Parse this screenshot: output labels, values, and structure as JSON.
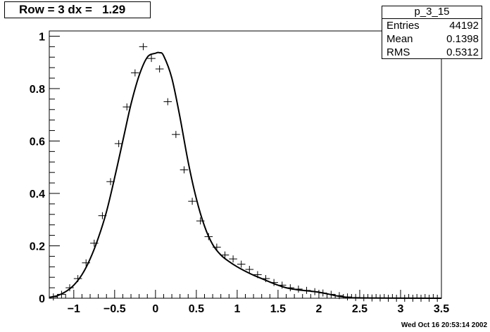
{
  "title": "Row = 3 dx =   1.29",
  "stats": {
    "name": "p_3_15",
    "rows": [
      {
        "key": "Entries",
        "value": "44192"
      },
      {
        "key": "Mean",
        "value": "0.1398"
      },
      {
        "key": "RMS",
        "value": "0.5312"
      }
    ]
  },
  "footer": "Wed Oct 16 20:53:14 2002",
  "chart_data": {
    "type": "scatter",
    "xlim": [
      -1.3,
      3.5
    ],
    "ylim": [
      0,
      1.02
    ],
    "xticks": [
      -1,
      -0.5,
      0,
      0.5,
      1,
      1.5,
      2,
      2.5,
      3,
      3.5
    ],
    "xtick_labels": [
      "−1",
      "−0.5",
      "0",
      "0.5",
      "1",
      "1.5",
      "2",
      "2.5",
      "3",
      "3.5"
    ],
    "yticks": [
      0,
      0.2,
      0.4,
      0.6,
      0.8,
      1
    ],
    "ytick_labels": [
      "0",
      "0.2",
      "0.4",
      "0.6",
      "0.8",
      "1"
    ],
    "grid": false,
    "series": [
      {
        "style": "markers-cross",
        "x": [
          -1.25,
          -1.15,
          -1.05,
          -0.95,
          -0.85,
          -0.75,
          -0.65,
          -0.55,
          -0.45,
          -0.35,
          -0.25,
          -0.15,
          -0.05,
          0.05,
          0.15,
          0.25,
          0.35,
          0.45,
          0.55,
          0.65,
          0.75,
          0.85,
          0.95,
          1.05,
          1.15,
          1.25,
          1.35,
          1.45,
          1.55,
          1.65,
          1.75,
          1.85,
          1.95,
          2.05,
          2.15,
          2.25,
          2.35,
          2.45,
          2.55,
          2.65,
          2.75,
          2.85,
          2.95,
          3.05,
          3.15,
          3.25,
          3.35,
          3.45
        ],
        "y": [
          0.005,
          0.015,
          0.04,
          0.075,
          0.135,
          0.21,
          0.315,
          0.445,
          0.59,
          0.73,
          0.86,
          0.96,
          0.915,
          0.875,
          0.75,
          0.625,
          0.49,
          0.37,
          0.295,
          0.235,
          0.195,
          0.165,
          0.15,
          0.13,
          0.11,
          0.09,
          0.075,
          0.06,
          0.05,
          0.04,
          0.035,
          0.03,
          0.025,
          0.02,
          0.015,
          0.01,
          0.005,
          0.003,
          0.002,
          0.001,
          0.001,
          0,
          0,
          0,
          0,
          0,
          0,
          0
        ]
      },
      {
        "style": "line",
        "x": [
          -1.3,
          -1.2,
          -1.1,
          -1.0,
          -0.9,
          -0.8,
          -0.7,
          -0.6,
          -0.5,
          -0.4,
          -0.3,
          -0.2,
          -0.1,
          0.0,
          0.05,
          0.1,
          0.2,
          0.3,
          0.4,
          0.5,
          0.6,
          0.7,
          0.8,
          0.9,
          1.0,
          1.1,
          1.2,
          1.3,
          1.4,
          1.5,
          1.6,
          1.7,
          1.8,
          1.9,
          2.0,
          2.1,
          2.2,
          2.3,
          2.4,
          2.5,
          3.5
        ],
        "y": [
          0.003,
          0.01,
          0.025,
          0.05,
          0.09,
          0.15,
          0.23,
          0.33,
          0.46,
          0.6,
          0.74,
          0.85,
          0.92,
          0.935,
          0.937,
          0.925,
          0.84,
          0.69,
          0.52,
          0.38,
          0.275,
          0.205,
          0.165,
          0.14,
          0.12,
          0.103,
          0.088,
          0.075,
          0.062,
          0.05,
          0.04,
          0.034,
          0.03,
          0.027,
          0.023,
          0.017,
          0.01,
          0.005,
          0.002,
          0.001,
          0
        ]
      }
    ]
  }
}
